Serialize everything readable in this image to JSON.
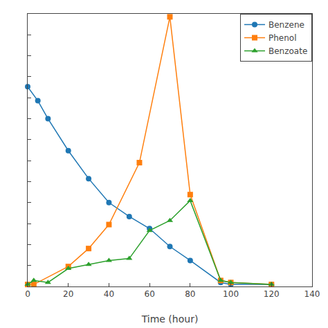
{
  "chart_data": {
    "type": "line",
    "xlabel": "Time (hour)",
    "series": [
      {
        "name": "Benzene",
        "marker": "circle",
        "x": [
          0,
          5,
          10,
          20,
          30,
          40,
          50,
          60,
          70,
          80,
          95,
          100,
          120
        ],
        "values": [
          1.0,
          0.93,
          0.84,
          0.68,
          0.54,
          0.42,
          0.35,
          0.29,
          0.2,
          0.13,
          0.02,
          0.01,
          0.01
        ]
      },
      {
        "name": "Phenol",
        "marker": "square",
        "x": [
          0,
          3,
          20,
          30,
          40,
          55,
          70,
          80,
          95,
          100,
          120
        ],
        "values": [
          0.01,
          0.01,
          0.1,
          0.19,
          0.31,
          0.62,
          1.35,
          0.46,
          0.03,
          0.02,
          0.01
        ]
      },
      {
        "name": "Benzoate",
        "marker": "triangle-up",
        "x": [
          0,
          3,
          10,
          20,
          30,
          40,
          50,
          60,
          70,
          80,
          95,
          100,
          120
        ],
        "values": [
          0.01,
          0.03,
          0.02,
          0.09,
          0.11,
          0.13,
          0.14,
          0.28,
          0.33,
          0.43,
          0.03,
          0.02,
          0.01
        ]
      }
    ],
    "xlim": [
      0,
      140
    ],
    "xticks": [
      0,
      20,
      40,
      60,
      80,
      100,
      120,
      140
    ],
    "ylim": [
      0,
      1.365
    ],
    "yticks": [
      0,
      0.105,
      0.21,
      0.315,
      0.42,
      0.525,
      0.63,
      0.735,
      0.84,
      0.945,
      1.05,
      1.155,
      1.26,
      1.365
    ],
    "tick_labels": "x",
    "grid": false,
    "legend": "upper right"
  }
}
